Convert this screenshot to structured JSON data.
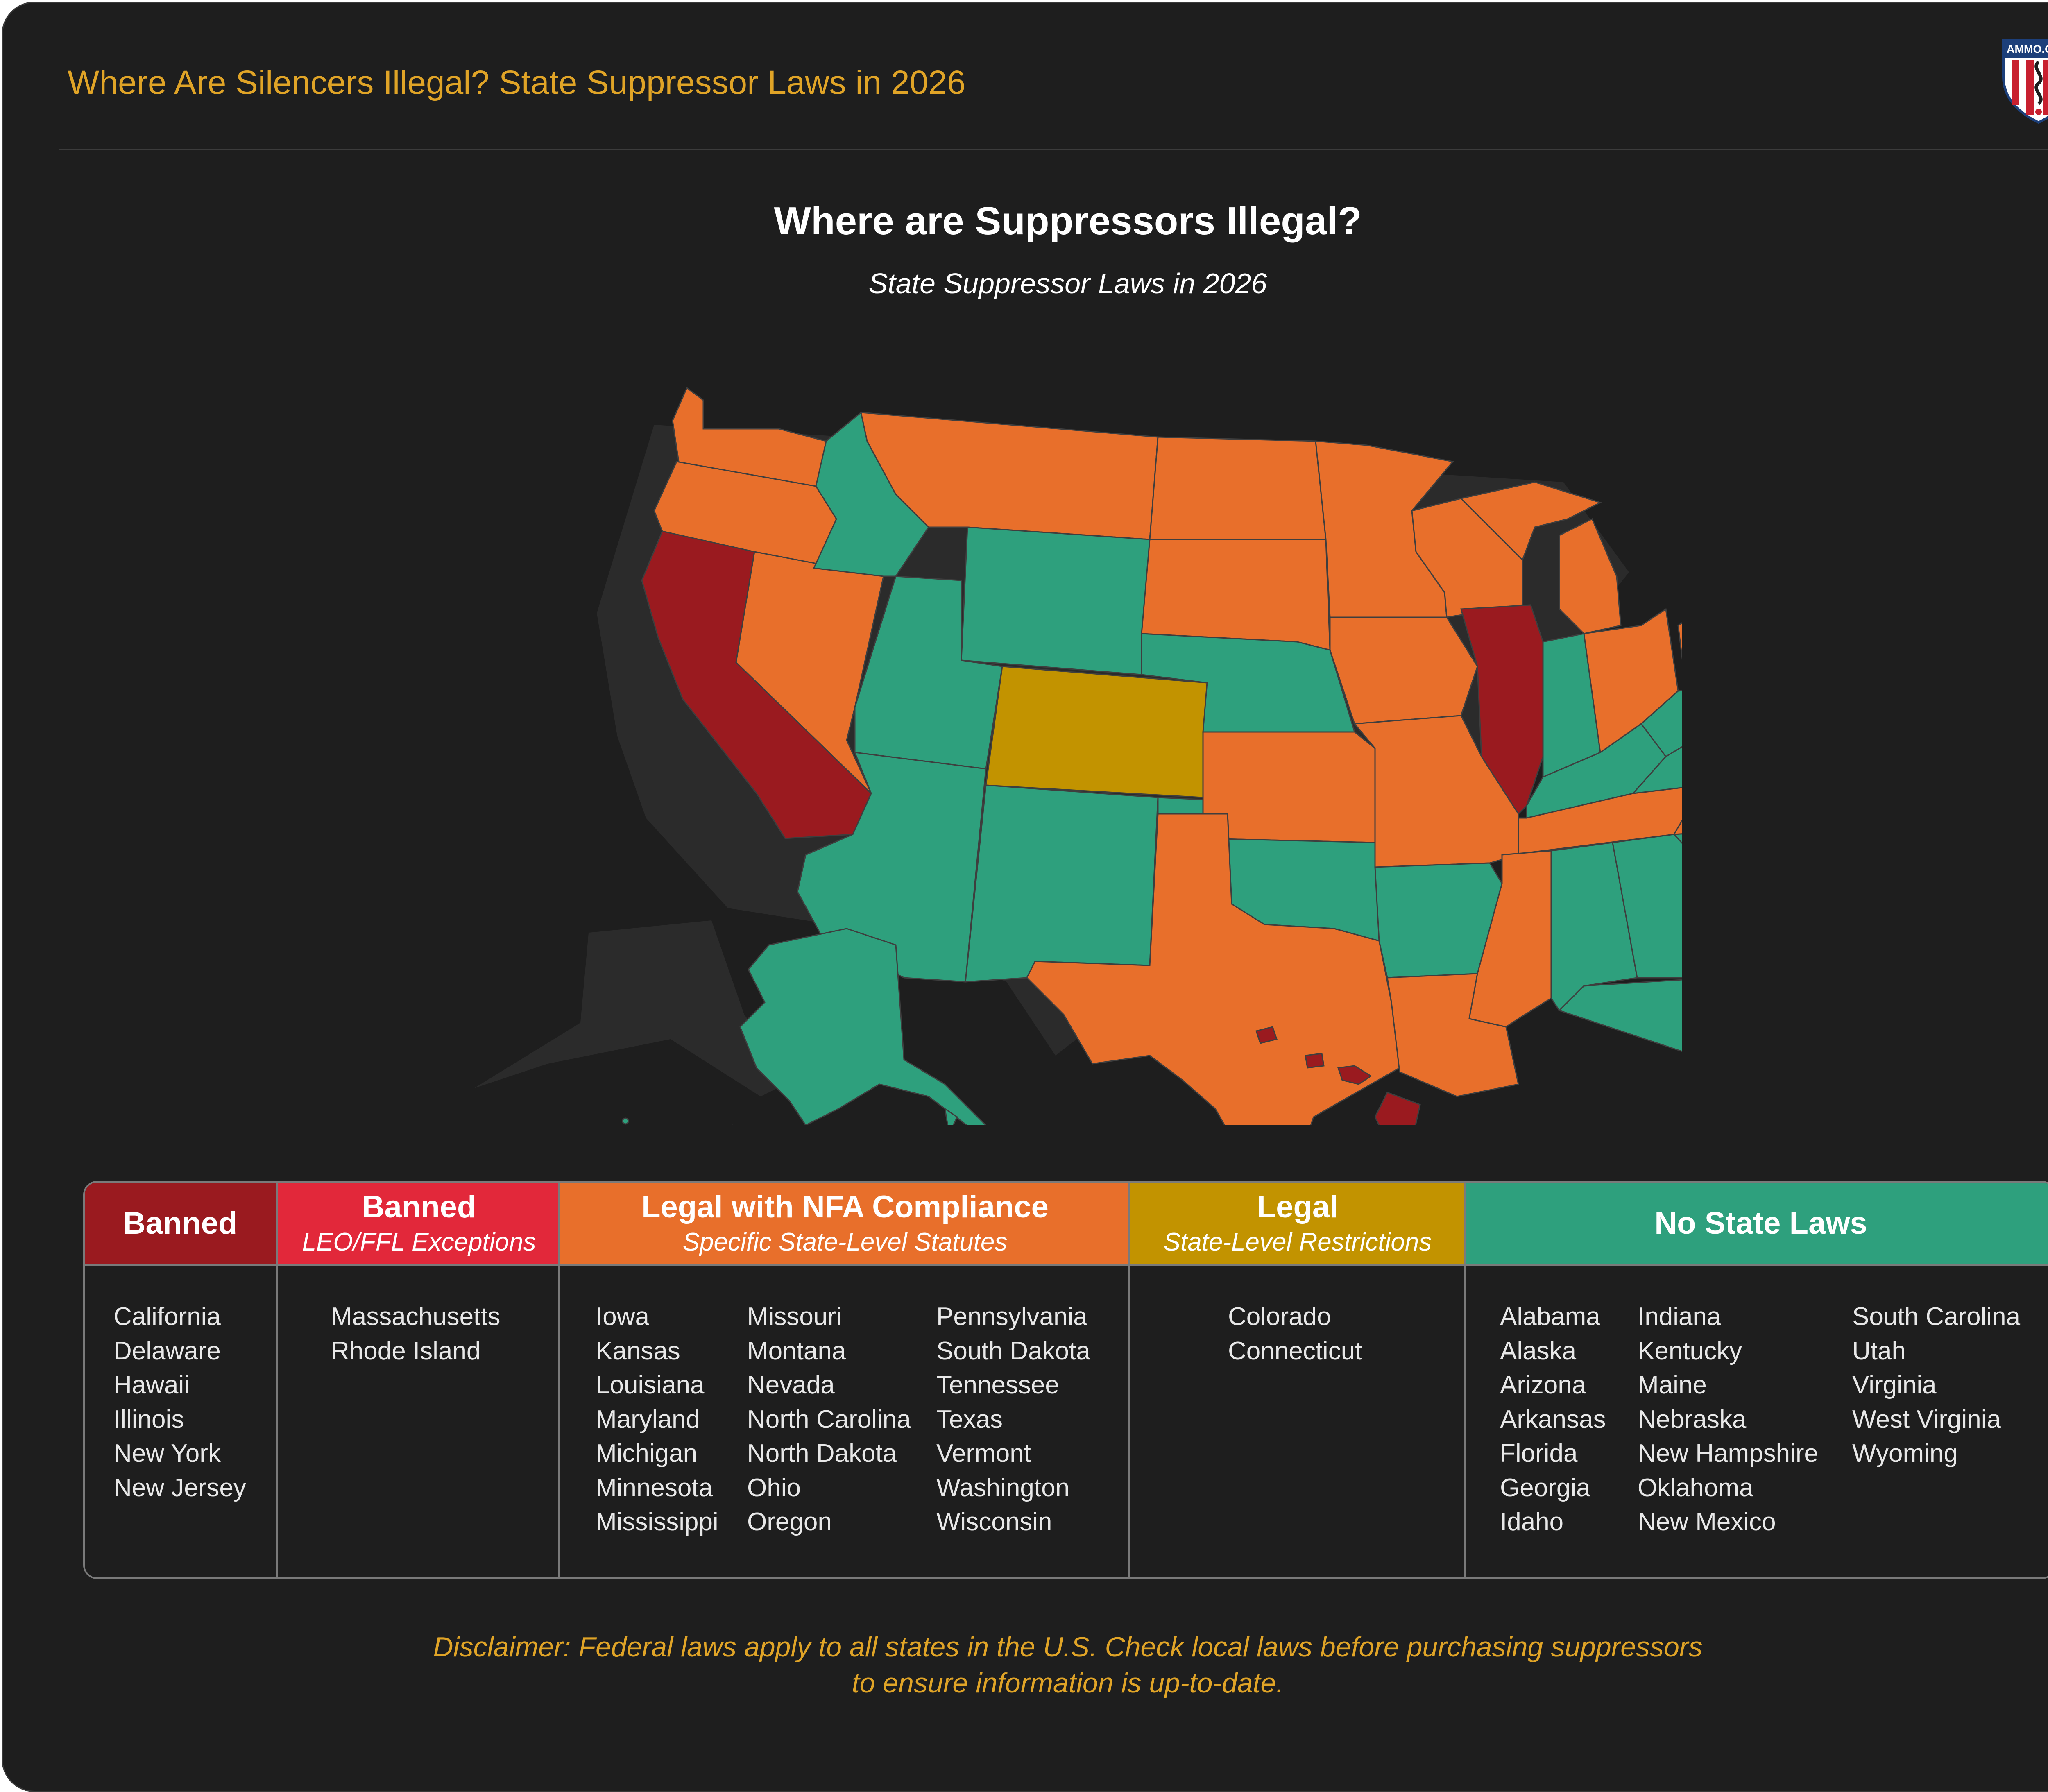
{
  "header": {
    "title": "Where Are Silencers Illegal? State Suppressor Laws in 2026"
  },
  "logo": {
    "text": "AMMO.COM",
    "icon": "ammo-com-shield-logo"
  },
  "map": {
    "title": "Where are Suppressors Illegal?",
    "subtitle": "State Suppressor Laws in 2026"
  },
  "colors": {
    "banned": "#9a1a1f",
    "banned_exceptions": "#e2283a",
    "nfa": "#e86f2b",
    "legal_restrictions": "#c29300",
    "no_state_laws": "#2ea07d",
    "shadow": "#2c2c2c",
    "accent_text": "#e0a427"
  },
  "legend": {
    "columns": [
      {
        "key": "banned",
        "title": "Banned",
        "subtitle": "",
        "lists": [
          [
            "California",
            "Delaware",
            "Hawaii",
            "Illinois",
            "New York",
            "New Jersey"
          ]
        ]
      },
      {
        "key": "banned_exceptions",
        "title": "Banned",
        "subtitle": "LEO/FFL Exceptions",
        "lists": [
          [
            "Massachusetts",
            "Rhode Island"
          ]
        ]
      },
      {
        "key": "nfa",
        "title": "Legal with NFA Compliance",
        "subtitle": "Specific State-Level Statutes",
        "lists": [
          [
            "Iowa",
            "Kansas",
            "Louisiana",
            "Maryland",
            "Michigan",
            "Minnesota",
            "Mississippi"
          ],
          [
            "Missouri",
            "Montana",
            "Nevada",
            "North Carolina",
            "North Dakota",
            "Ohio",
            "Oregon"
          ],
          [
            "Pennsylvania",
            "South Dakota",
            "Tennessee",
            "Texas",
            "Vermont",
            "Washington",
            "Wisconsin"
          ]
        ]
      },
      {
        "key": "legal_restrictions",
        "title": "Legal",
        "subtitle": "State-Level Restrictions",
        "lists": [
          [
            "Colorado",
            "Connecticut"
          ]
        ]
      },
      {
        "key": "no_state_laws",
        "title": "No State Laws",
        "subtitle": "",
        "lists": [
          [
            "Alabama",
            "Alaska",
            "Arizona",
            "Arkansas",
            "Florida",
            "Georgia",
            "Idaho"
          ],
          [
            "Indiana",
            "Kentucky",
            "Maine",
            "Nebraska",
            "New Hampshire",
            "Oklahoma",
            "New Mexico"
          ],
          [
            "South Carolina",
            "Utah",
            "Virginia",
            "West Virginia",
            "Wyoming"
          ]
        ]
      }
    ]
  },
  "disclaimer": {
    "line1": "Disclaimer: Federal laws apply to all states in the U.S. Check local laws before purchasing suppressors",
    "line2": "to ensure information is up-to-date."
  }
}
